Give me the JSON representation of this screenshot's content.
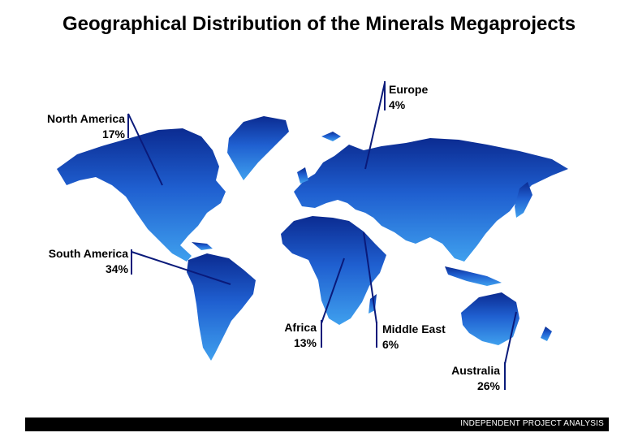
{
  "colors": {
    "land_top": "#0b2b91",
    "land_bottom": "#3fa0ee",
    "leader": "#0a1a7a"
  },
  "chart_data": {
    "type": "map",
    "title": "Geographical Distribution of the Minerals Megaprojects",
    "regions": [
      {
        "name": "North America",
        "value": 17,
        "label": "17%"
      },
      {
        "name": "Europe",
        "value": 4,
        "label": "4%"
      },
      {
        "name": "South America",
        "value": 34,
        "label": "34%"
      },
      {
        "name": "Africa",
        "value": 13,
        "label": "13%"
      },
      {
        "name": "Middle East",
        "value": 6,
        "label": "6%"
      },
      {
        "name": "Australia",
        "value": 26,
        "label": "26%"
      }
    ]
  },
  "footer": {
    "text": "INDEPENDENT PROJECT ANALYSIS"
  }
}
